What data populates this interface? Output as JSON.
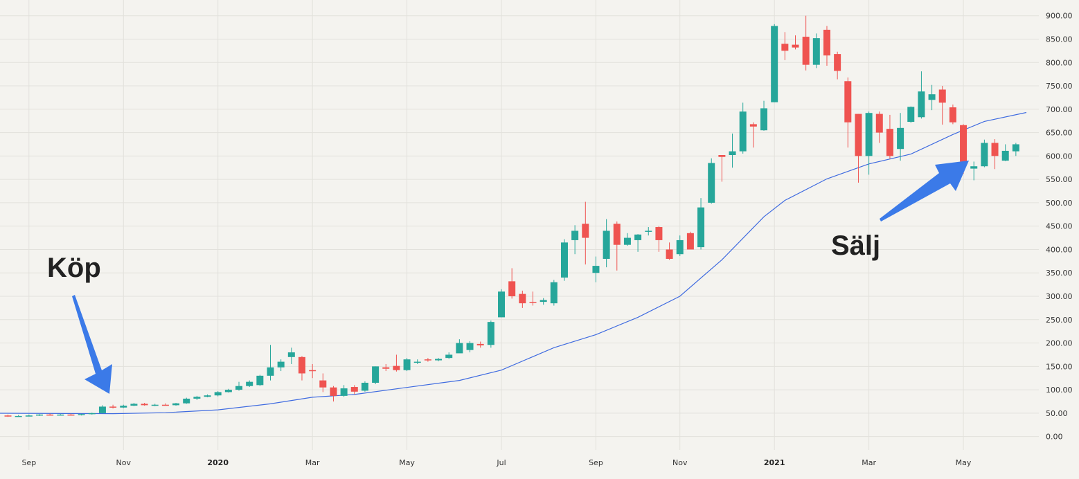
{
  "chart_data": {
    "type": "candlestick",
    "colors": {
      "up": "#26a69a",
      "down": "#ef5350",
      "moving_average": "#3f6be0",
      "arrow": "#3b7ae8",
      "background": "#f4f3ef",
      "grid": "#e2e1dc"
    },
    "grid": true,
    "ylim": [
      -15,
      915
    ],
    "y_ticks": [
      "900.00",
      "850.00",
      "800.00",
      "750.00",
      "700.00",
      "650.00",
      "600.00",
      "550.00",
      "500.00",
      "450.00",
      "400.00",
      "350.00",
      "300.00",
      "250.00",
      "200.00",
      "150.00",
      "100.00",
      "50.00",
      "0.00"
    ],
    "y_tick_values": [
      900,
      850,
      800,
      750,
      700,
      650,
      600,
      550,
      500,
      450,
      400,
      350,
      300,
      250,
      200,
      150,
      100,
      50,
      0
    ],
    "x_ticks": [
      {
        "label": "Sep",
        "i": 2,
        "bold": false
      },
      {
        "label": "Nov",
        "i": 11,
        "bold": false
      },
      {
        "label": "2020",
        "i": 20,
        "bold": true
      },
      {
        "label": "Mar",
        "i": 29,
        "bold": false
      },
      {
        "label": "May",
        "i": 38,
        "bold": false
      },
      {
        "label": "Jul",
        "i": 47,
        "bold": false
      },
      {
        "label": "Sep",
        "i": 56,
        "bold": false
      },
      {
        "label": "Nov",
        "i": 64,
        "bold": false
      },
      {
        "label": "2021",
        "i": 73,
        "bold": true
      },
      {
        "label": "Mar",
        "i": 82,
        "bold": false
      },
      {
        "label": "May",
        "i": 91,
        "bold": false
      }
    ],
    "candles": [
      [
        45,
        47,
        42,
        43
      ],
      [
        43,
        46,
        42,
        44
      ],
      [
        44,
        47,
        43,
        45
      ],
      [
        45,
        48,
        44,
        47
      ],
      [
        47,
        49,
        45,
        46
      ],
      [
        46,
        48,
        45,
        47
      ],
      [
        47,
        49,
        45,
        46
      ],
      [
        46,
        49,
        45,
        48
      ],
      [
        48,
        51,
        47,
        50
      ],
      [
        50,
        67,
        49,
        64
      ],
      [
        64,
        68,
        60,
        62
      ],
      [
        62,
        68,
        61,
        66
      ],
      [
        66,
        72,
        65,
        70
      ],
      [
        70,
        72,
        66,
        67
      ],
      [
        67,
        70,
        65,
        68
      ],
      [
        68,
        71,
        66,
        67
      ],
      [
        67,
        72,
        66,
        71
      ],
      [
        71,
        83,
        70,
        81
      ],
      [
        81,
        87,
        78,
        85
      ],
      [
        85,
        90,
        84,
        88
      ],
      [
        88,
        97,
        86,
        95
      ],
      [
        95,
        102,
        94,
        100
      ],
      [
        100,
        117,
        98,
        108
      ],
      [
        108,
        120,
        106,
        117
      ],
      [
        110,
        132,
        108,
        130
      ],
      [
        130,
        196,
        120,
        148
      ],
      [
        148,
        165,
        140,
        160
      ],
      [
        170,
        190,
        155,
        180
      ],
      [
        170,
        172,
        120,
        135
      ],
      [
        142,
        155,
        125,
        140
      ],
      [
        120,
        135,
        95,
        105
      ],
      [
        105,
        108,
        75,
        87
      ],
      [
        87,
        110,
        85,
        103
      ],
      [
        106,
        110,
        90,
        96
      ],
      [
        98,
        118,
        96,
        115
      ],
      [
        115,
        150,
        112,
        150
      ],
      [
        148,
        155,
        140,
        145
      ],
      [
        151,
        175,
        139,
        142
      ],
      [
        142,
        168,
        140,
        165
      ],
      [
        158,
        165,
        155,
        160
      ],
      [
        165,
        168,
        160,
        163
      ],
      [
        163,
        168,
        161,
        166
      ],
      [
        168,
        180,
        166,
        175
      ],
      [
        178,
        208,
        183,
        200
      ],
      [
        185,
        204,
        180,
        200
      ],
      [
        198,
        203,
        190,
        195
      ],
      [
        196,
        248,
        190,
        245
      ],
      [
        255,
        315,
        255,
        310
      ],
      [
        332,
        360,
        295,
        300
      ],
      [
        305,
        312,
        275,
        285
      ],
      [
        288,
        310,
        280,
        286
      ],
      [
        288,
        296,
        282,
        292
      ],
      [
        285,
        335,
        280,
        330
      ],
      [
        340,
        422,
        333,
        415
      ],
      [
        420,
        452,
        390,
        440
      ],
      [
        455,
        502,
        368,
        425
      ],
      [
        350,
        385,
        330,
        365
      ],
      [
        380,
        465,
        362,
        440
      ],
      [
        455,
        460,
        355,
        410
      ],
      [
        410,
        435,
        408,
        425
      ],
      [
        420,
        433,
        395,
        432
      ],
      [
        438,
        448,
        430,
        440
      ],
      [
        448,
        450,
        395,
        420
      ],
      [
        400,
        415,
        378,
        380
      ],
      [
        390,
        430,
        386,
        420
      ],
      [
        435,
        438,
        405,
        400
      ],
      [
        405,
        510,
        400,
        490
      ],
      [
        500,
        595,
        498,
        585
      ],
      [
        602,
        600,
        545,
        598
      ],
      [
        602,
        648,
        575,
        610
      ],
      [
        610,
        714,
        605,
        695
      ],
      [
        668,
        672,
        618,
        663
      ],
      [
        655,
        718,
        654,
        702
      ],
      [
        715,
        882,
        715,
        878
      ],
      [
        840,
        865,
        805,
        825
      ],
      [
        838,
        858,
        828,
        832
      ],
      [
        855,
        900,
        783,
        795
      ],
      [
        795,
        862,
        788,
        852
      ],
      [
        870,
        878,
        793,
        815
      ],
      [
        818,
        823,
        764,
        782
      ],
      [
        760,
        768,
        618,
        672
      ],
      [
        690,
        690,
        543,
        600
      ],
      [
        600,
        695,
        560,
        692
      ],
      [
        690,
        695,
        628,
        650
      ],
      [
        658,
        688,
        594,
        600
      ],
      [
        615,
        692,
        590,
        660
      ],
      [
        673,
        706,
        671,
        705
      ],
      [
        683,
        781,
        680,
        738
      ],
      [
        720,
        752,
        698,
        732
      ],
      [
        742,
        750,
        667,
        714
      ],
      [
        704,
        710,
        668,
        672
      ],
      [
        666,
        668,
        562,
        588
      ],
      [
        573,
        588,
        548,
        578
      ],
      [
        578,
        635,
        576,
        628
      ],
      [
        628,
        636,
        572,
        600
      ],
      [
        590,
        625,
        589,
        611
      ],
      [
        610,
        628,
        600,
        625
      ]
    ],
    "moving_average": [
      [
        -2,
        50
      ],
      [
        10,
        49
      ],
      [
        15,
        51
      ],
      [
        20,
        57
      ],
      [
        25,
        70
      ],
      [
        29,
        84
      ],
      [
        33,
        90
      ],
      [
        38,
        105
      ],
      [
        43,
        120
      ],
      [
        47,
        142
      ],
      [
        52,
        190
      ],
      [
        56,
        218
      ],
      [
        60,
        255
      ],
      [
        64,
        300
      ],
      [
        68,
        378
      ],
      [
        72,
        470
      ],
      [
        74,
        505
      ],
      [
        78,
        551
      ],
      [
        82,
        583
      ],
      [
        86,
        604
      ],
      [
        90,
        646
      ],
      [
        93,
        674
      ],
      [
        97,
        693
      ]
    ],
    "annotations": [
      {
        "text": "Köp",
        "anchor_i": 9
      },
      {
        "text": "Sälj",
        "anchor_i": 91
      }
    ]
  }
}
